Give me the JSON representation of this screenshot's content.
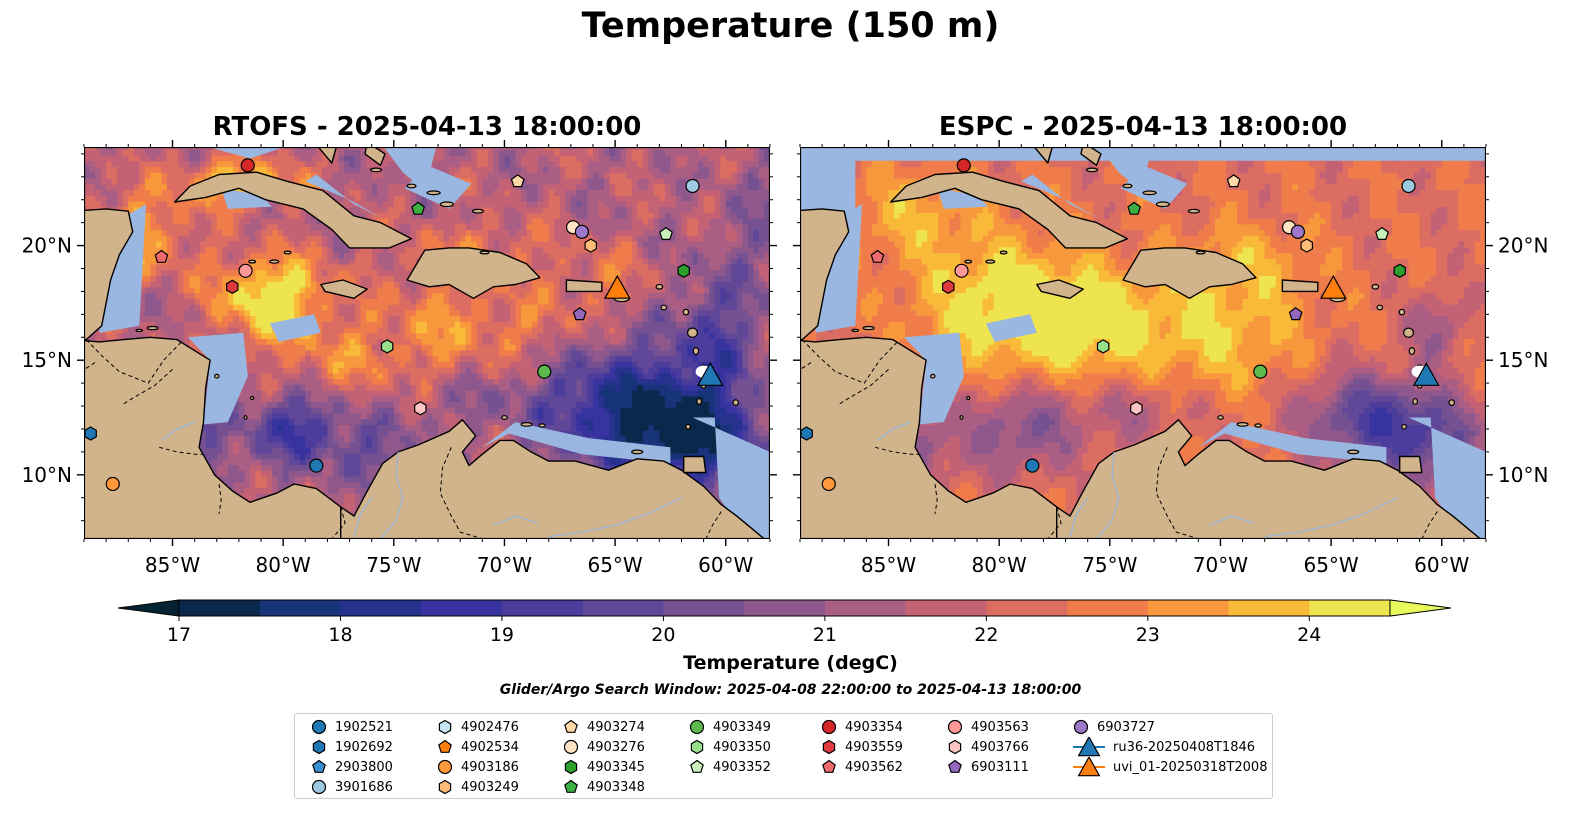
{
  "figure": {
    "title": "Temperature (150 m)",
    "search_window": "Glider/Argo Search Window: 2025-04-08 22:00:00 to 2025-04-13 18:00:00"
  },
  "panels": [
    {
      "title": "RTOFS - 2025-04-13 18:00:00",
      "model": "RTOFS"
    },
    {
      "title": "ESPC - 2025-04-13 18:00:00",
      "model": "ESPC"
    }
  ],
  "map": {
    "lon_ticks": [
      "85°W",
      "80°W",
      "75°W",
      "70°W",
      "65°W",
      "60°W"
    ],
    "lat_ticks": [
      "20°N",
      "15°N",
      "10°N"
    ],
    "colors": {
      "land": "#d2b48c",
      "shallow_water": "#99b7e0",
      "coastline": "#000000"
    }
  },
  "colorbar": {
    "label": "Temperature (degC)",
    "ticks": [
      "17",
      "18",
      "19",
      "20",
      "21",
      "22",
      "23",
      "24"
    ],
    "range": [
      17,
      24.5
    ],
    "step": 0.5,
    "extend": "both",
    "colormap": "thermal"
  },
  "legend": {
    "items": [
      {
        "id": "1902521",
        "marker": "circle",
        "color": "#1f77b4"
      },
      {
        "id": "1902692",
        "marker": "hexagon",
        "color": "#1f77b4"
      },
      {
        "id": "2903800",
        "marker": "pentagon",
        "color": "#3a8fd0"
      },
      {
        "id": "3901686",
        "marker": "circle",
        "color": "#9ecae1"
      },
      {
        "id": "4902476",
        "marker": "hexagon",
        "color": "#c6e6f6"
      },
      {
        "id": "4902534",
        "marker": "pentagon",
        "color": "#ff7f0e"
      },
      {
        "id": "4903186",
        "marker": "circle",
        "color": "#ff9a3c"
      },
      {
        "id": "4903249",
        "marker": "hexagon",
        "color": "#ffbb78"
      },
      {
        "id": "4903274",
        "marker": "pentagon",
        "color": "#ffd8a8"
      },
      {
        "id": "4903276",
        "marker": "circle",
        "color": "#ffe4c4"
      },
      {
        "id": "4903345",
        "marker": "hexagon",
        "color": "#2ca02c"
      },
      {
        "id": "4903348",
        "marker": "pentagon",
        "color": "#3cb043"
      },
      {
        "id": "4903349",
        "marker": "circle",
        "color": "#5dbb4d"
      },
      {
        "id": "4903350",
        "marker": "hexagon",
        "color": "#98df8a"
      },
      {
        "id": "4903352",
        "marker": "pentagon",
        "color": "#c8f0b8"
      },
      {
        "id": "4903354",
        "marker": "circle",
        "color": "#d62728"
      },
      {
        "id": "4903559",
        "marker": "hexagon",
        "color": "#e03a3e"
      },
      {
        "id": "4903562",
        "marker": "pentagon",
        "color": "#f0696e"
      },
      {
        "id": "4903563",
        "marker": "circle",
        "color": "#ff9896"
      },
      {
        "id": "4903766",
        "marker": "hexagon",
        "color": "#ffc4c4"
      },
      {
        "id": "6903111",
        "marker": "pentagon",
        "color": "#9467bd"
      },
      {
        "id": "6903727",
        "marker": "circle",
        "color": "#9d78c8"
      },
      {
        "id": "ru36-20250408T1846",
        "marker": "triangle-line",
        "color": "#1f77b4"
      },
      {
        "id": "uvi_01-20250318T2008",
        "marker": "triangle-line",
        "color": "#ff7f0e"
      }
    ]
  },
  "observations": [
    {
      "id": "4903354",
      "lon": -81.6,
      "lat": 23.5
    },
    {
      "id": "4903274",
      "lon": -69.4,
      "lat": 22.8
    },
    {
      "id": "3901686",
      "lon": -61.5,
      "lat": 22.6
    },
    {
      "id": "4903348",
      "lon": -73.9,
      "lat": 21.6
    },
    {
      "id": "4903276",
      "lon": -66.9,
      "lat": 20.8
    },
    {
      "id": "6903727",
      "lon": -66.5,
      "lat": 20.6
    },
    {
      "id": "4903249",
      "lon": -66.1,
      "lat": 20.0
    },
    {
      "id": "4903352",
      "lon": -62.7,
      "lat": 20.5
    },
    {
      "id": "4903562",
      "lon": -85.5,
      "lat": 19.5
    },
    {
      "id": "4903563",
      "lon": -81.7,
      "lat": 18.9
    },
    {
      "id": "4903559",
      "lon": -82.3,
      "lat": 18.2
    },
    {
      "id": "4903345",
      "lon": -61.9,
      "lat": 18.9
    },
    {
      "id": "6903111",
      "lon": -66.6,
      "lat": 17.0
    },
    {
      "id": "4903350",
      "lon": -75.3,
      "lat": 15.6
    },
    {
      "id": "4903349",
      "lon": -68.2,
      "lat": 14.5
    },
    {
      "id": "4903766",
      "lon": -73.8,
      "lat": 12.9
    },
    {
      "id": "1902692",
      "lon": -88.7,
      "lat": 11.8
    },
    {
      "id": "1902521",
      "lon": -78.5,
      "lat": 10.4
    },
    {
      "id": "4903186",
      "lon": -87.7,
      "lat": 9.6
    }
  ],
  "gliders": [
    {
      "id": "uvi_01-20250318T2008",
      "lon": -64.9,
      "lat": 18.1
    },
    {
      "id": "ru36-20250408T1846",
      "lon": -60.7,
      "lat": 14.3
    }
  ]
}
